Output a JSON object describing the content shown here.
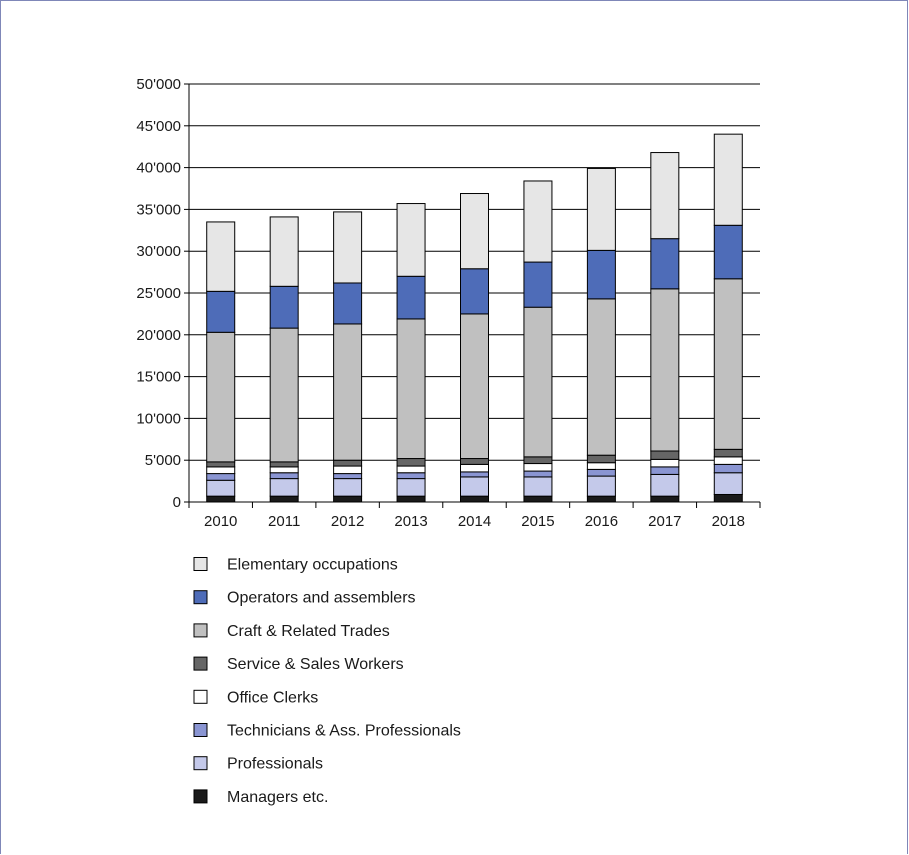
{
  "chart_data": {
    "type": "bar",
    "stacked": true,
    "categories": [
      "2010",
      "2011",
      "2012",
      "2013",
      "2014",
      "2015",
      "2016",
      "2017",
      "2018"
    ],
    "ylim": [
      0,
      50000
    ],
    "yticks": [
      0,
      5000,
      10000,
      15000,
      20000,
      25000,
      30000,
      35000,
      40000,
      45000,
      50000
    ],
    "ytick_labels": [
      "0",
      "5'000",
      "10'000",
      "15'000",
      "20'000",
      "25'000",
      "30'000",
      "35'000",
      "40'000",
      "45'000",
      "50'000"
    ],
    "grid": true,
    "legend_position": "bottom",
    "series": [
      {
        "name": "Managers etc.",
        "color": "#1a1a1a",
        "values": [
          700,
          700,
          700,
          700,
          700,
          700,
          700,
          700,
          900
        ]
      },
      {
        "name": "Professionals",
        "color": "#c4c9ea",
        "values": [
          1900,
          2100,
          2100,
          2100,
          2300,
          2300,
          2400,
          2600,
          2600
        ]
      },
      {
        "name": "Technicians & Ass. Professionals",
        "color": "#8a95d2",
        "values": [
          800,
          700,
          600,
          700,
          600,
          700,
          800,
          900,
          1000
        ]
      },
      {
        "name": "Office Clerks",
        "color": "#ffffff",
        "values": [
          800,
          700,
          900,
          800,
          900,
          900,
          800,
          900,
          900
        ]
      },
      {
        "name": "Service & Sales Workers",
        "color": "#666666",
        "values": [
          600,
          600,
          700,
          900,
          700,
          800,
          900,
          1000,
          900
        ]
      },
      {
        "name": "Craft & Related Trades",
        "color": "#c0c0c0",
        "values": [
          15500,
          16000,
          16300,
          16700,
          17300,
          17900,
          18700,
          19400,
          20400
        ]
      },
      {
        "name": "Operators and assemblers",
        "color": "#4e6cb8",
        "values": [
          4900,
          5000,
          4900,
          5100,
          5400,
          5400,
          5800,
          6000,
          6400
        ]
      },
      {
        "name": "Elementary occupations",
        "color": "#e6e6e6",
        "values": [
          8300,
          8300,
          8500,
          8700,
          9000,
          9700,
          9800,
          10300,
          10900
        ]
      }
    ],
    "legend_order": [
      "Elementary occupations",
      "Operators and assemblers",
      "Craft & Related Trades",
      "Service & Sales Workers",
      "Office Clerks",
      "Technicians & Ass. Professionals",
      "Professionals",
      "Managers etc."
    ]
  }
}
